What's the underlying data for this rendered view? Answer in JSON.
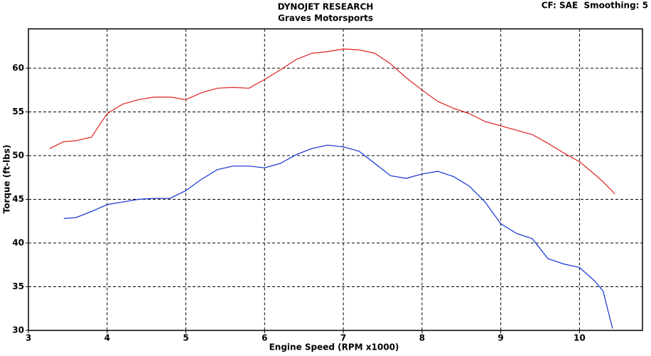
{
  "chart_data": {
    "type": "line",
    "title": "DYNOJET RESEARCH",
    "subtitle": "Graves Motorsports",
    "annotation": "CF: SAE  Smoothing: 5",
    "x_label": "Engine Speed (RPM x1000)",
    "y_label": "Torque (ft-lbs)",
    "x": [
      3.27,
      3.45,
      3.6,
      3.8,
      4.0,
      4.2,
      4.4,
      4.6,
      4.8,
      5.0,
      5.2,
      5.4,
      5.6,
      5.8,
      6.0,
      6.2,
      6.4,
      6.6,
      6.8,
      7.0,
      7.2,
      7.4,
      7.6,
      7.8,
      8.0,
      8.2,
      8.4,
      8.6,
      8.8,
      9.0,
      9.2,
      9.4,
      9.6,
      9.8,
      10.0,
      10.2,
      10.3,
      10.42,
      10.45
    ],
    "series": [
      {
        "color": "#e02020",
        "values": [
          50.8,
          51.6,
          51.7,
          52.1,
          54.8,
          55.9,
          56.4,
          56.7,
          56.7,
          56.4,
          57.2,
          57.7,
          57.8,
          57.7,
          58.7,
          59.8,
          61.0,
          61.7,
          61.9,
          62.2,
          62.1,
          61.7,
          60.5,
          58.9,
          57.5,
          56.2,
          55.4,
          54.8,
          53.9,
          53.4,
          52.9,
          52.4,
          51.4,
          50.3,
          49.3,
          47.8,
          47.0,
          45.9,
          45.6
        ]
      },
      {
        "color": "#1030d0",
        "values": [
          null,
          42.8,
          42.9,
          43.6,
          44.4,
          44.7,
          45.0,
          45.1,
          45.1,
          46.0,
          47.3,
          48.4,
          48.8,
          48.8,
          48.6,
          49.1,
          50.1,
          50.8,
          51.2,
          51.0,
          50.5,
          49.1,
          47.7,
          47.4,
          47.9,
          48.2,
          47.6,
          46.5,
          44.7,
          42.2,
          41.1,
          40.5,
          38.2,
          37.6,
          37.2,
          35.6,
          34.5,
          30.2,
          null
        ]
      }
    ],
    "xlim": [
      3,
      10.8
    ],
    "ylim": [
      30,
      64.5
    ],
    "xticks": [
      3,
      4,
      5,
      6,
      7,
      8,
      9,
      10
    ],
    "yticks": [
      30,
      35,
      40,
      45,
      50,
      55,
      60
    ],
    "grid": true
  }
}
